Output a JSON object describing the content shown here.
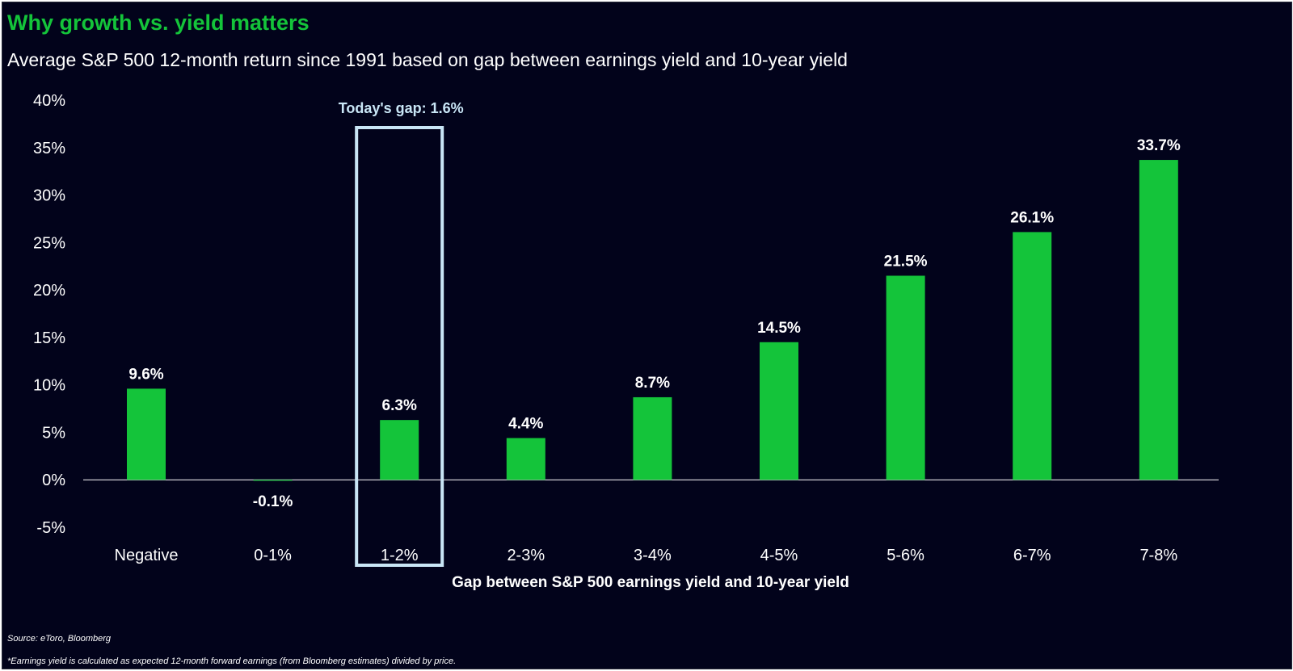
{
  "title": "Why growth vs. yield matters",
  "subtitle": "Average S&P 500 12-month return since 1991 based on gap between earnings yield and 10-year yield",
  "source": "Source: eToro, Bloomberg",
  "footnote": "*Earnings yield is calculated as expected 12-month forward earnings (from Bloomberg estimates) divided by price.",
  "colors": {
    "background": "#02031b",
    "bar": "#14c43a",
    "title": "#14c43a",
    "highlight_box": "#c9e6f6",
    "text": "#ffffff"
  },
  "chart_data": {
    "type": "bar",
    "categories": [
      "Negative",
      "0-1%",
      "1-2%",
      "2-3%",
      "3-4%",
      "4-5%",
      "5-6%",
      "6-7%",
      "7-8%"
    ],
    "values": [
      9.6,
      -0.1,
      6.3,
      4.4,
      8.7,
      14.5,
      21.5,
      26.1,
      33.7
    ],
    "data_labels": [
      "9.6%",
      "-0.1%",
      "6.3%",
      "4.4%",
      "8.7%",
      "14.5%",
      "21.5%",
      "26.1%",
      "33.7%"
    ],
    "ylim": [
      -5,
      40
    ],
    "yticks": [
      40,
      35,
      30,
      25,
      20,
      15,
      10,
      5,
      0,
      -5
    ],
    "ytick_labels": [
      "40%",
      "35%",
      "30%",
      "25%",
      "20%",
      "15%",
      "10%",
      "5%",
      "0%",
      "-5%"
    ],
    "xlabel": "Gap between S&P 500 earnings yield and 10-year yield",
    "ylabel": "",
    "grid": false,
    "legend": "none",
    "highlight": {
      "category": "1-2%",
      "label": "Today's gap: 1.6%"
    }
  }
}
